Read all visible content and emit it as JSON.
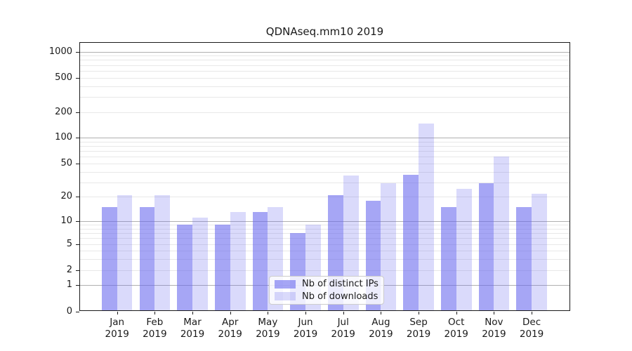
{
  "title": "QDNAseq.mm10 2019",
  "chart_data": {
    "type": "bar",
    "title": "QDNAseq.mm10 2019",
    "categories": [
      "Jan",
      "Feb",
      "Mar",
      "Apr",
      "May",
      "Jun",
      "Jul",
      "Aug",
      "Sep",
      "Oct",
      "Nov",
      "Dec"
    ],
    "category_year": "2019",
    "series": [
      {
        "name": "Nb of distinct IPs",
        "color": "rgba(102,102,238,0.58)",
        "values": [
          15,
          15,
          9,
          9,
          13,
          7,
          21,
          18,
          37,
          15,
          29,
          15
        ]
      },
      {
        "name": "Nb of downloads",
        "color": "rgba(102,102,238,0.24)",
        "values": [
          21,
          21,
          11,
          13,
          15,
          9,
          36,
          29,
          148,
          25,
          60,
          22
        ]
      }
    ],
    "xlabel": "",
    "ylabel": "",
    "y_scale": "log10(1+x)",
    "y_ticks": [
      0,
      1,
      2,
      5,
      10,
      20,
      50,
      100,
      200,
      500,
      1000
    ],
    "y_minor_gridlines": [
      2,
      3,
      4,
      5,
      6,
      7,
      8,
      9,
      20,
      30,
      40,
      50,
      60,
      70,
      80,
      90,
      200,
      300,
      400,
      500,
      600,
      700,
      800,
      900
    ],
    "y_major_gridlines": [
      1,
      10,
      100,
      1000
    ],
    "ylim": [
      0,
      1300
    ],
    "grid": true,
    "legend_position": "lower center"
  },
  "colors": {
    "bar_base": "#6666ee",
    "major_grid": "#b0b0b0",
    "minor_grid": "#e8e8e8",
    "axis": "#1a1a1a",
    "legend_border": "#cccccc"
  }
}
